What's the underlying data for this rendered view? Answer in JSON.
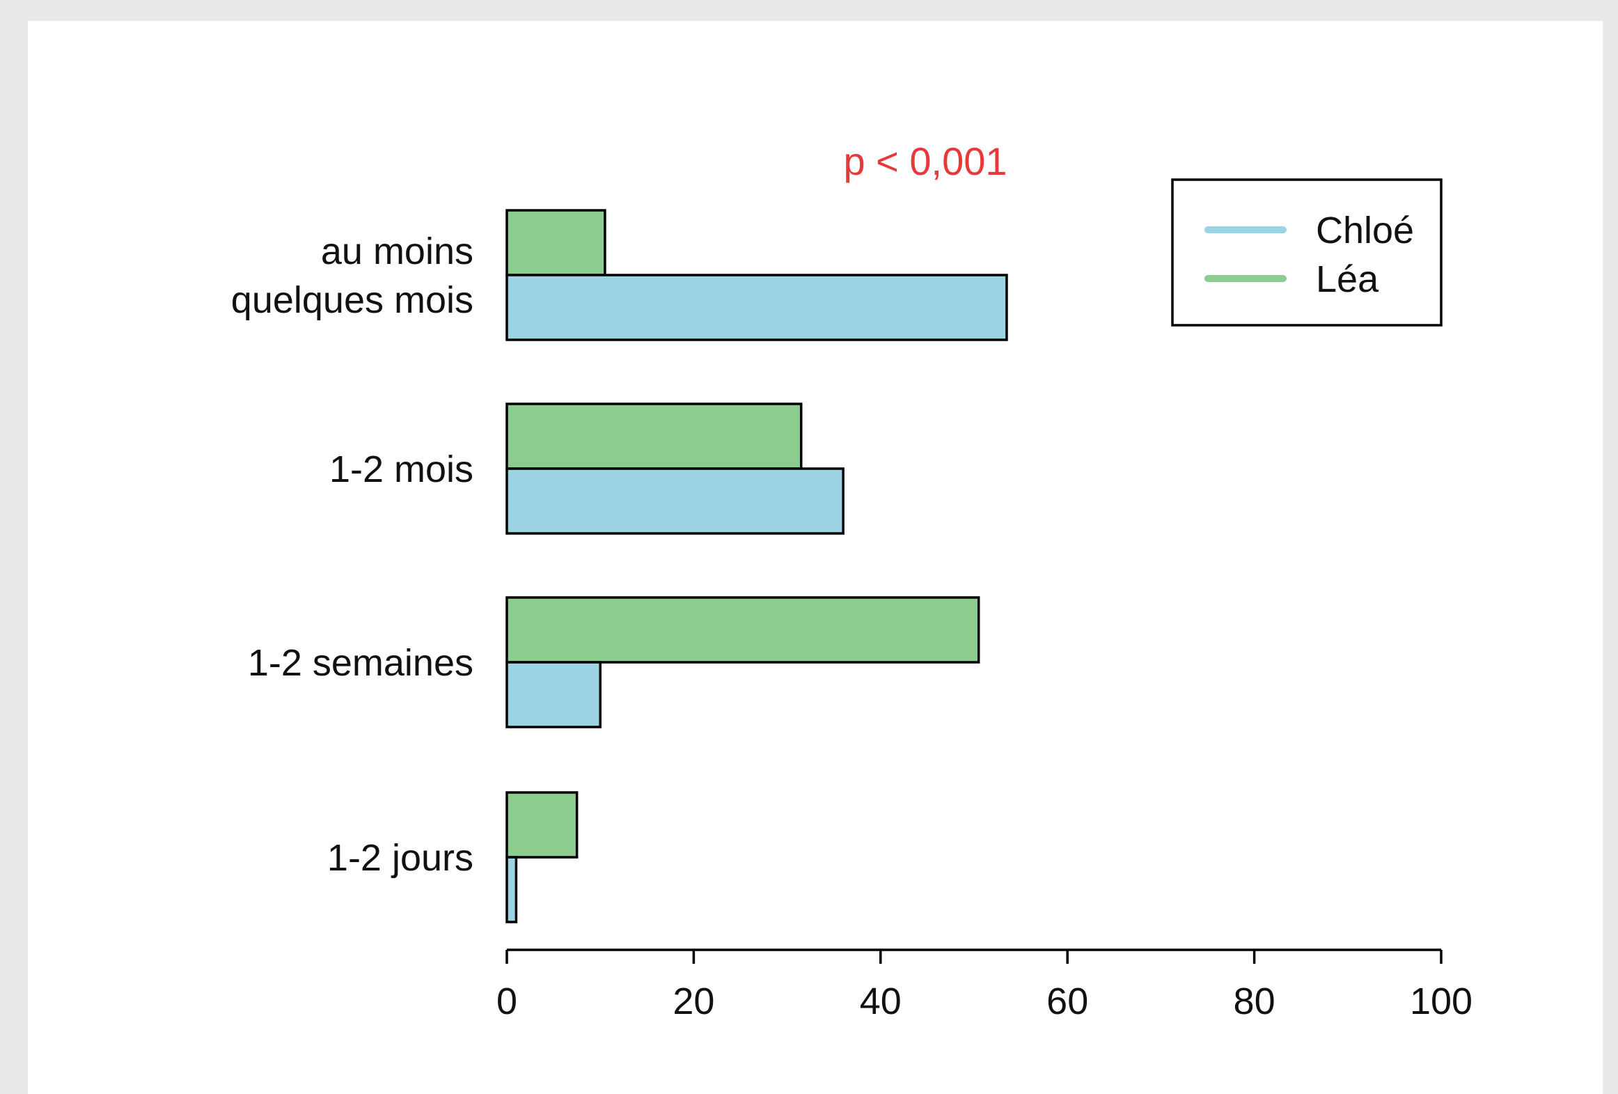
{
  "chart_data": {
    "type": "bar",
    "orientation": "horizontal",
    "annotation": "p < 0,001",
    "categories": [
      "au moins quelques mois",
      "1-2 mois",
      "1-2 semaines",
      "1-2 jours"
    ],
    "category_labels": [
      [
        "au moins",
        "quelques mois"
      ],
      [
        "1-2 mois"
      ],
      [
        "1-2 semaines"
      ],
      [
        "1-2 jours"
      ]
    ],
    "series": [
      {
        "name": "Léa",
        "color": "#8ccc8e",
        "values": [
          10.5,
          31.5,
          50.5,
          7.5
        ]
      },
      {
        "name": "Chloé",
        "color": "#9dd4e4",
        "values": [
          53.5,
          36,
          10,
          1
        ]
      }
    ],
    "xlim": [
      0,
      100
    ],
    "xticks": [
      0,
      20,
      40,
      60,
      80,
      100
    ],
    "grid": false,
    "legend": {
      "placement": "top-right",
      "entries": [
        "Chloé",
        "Léa"
      ]
    },
    "annotation_color": "#e8393a"
  }
}
